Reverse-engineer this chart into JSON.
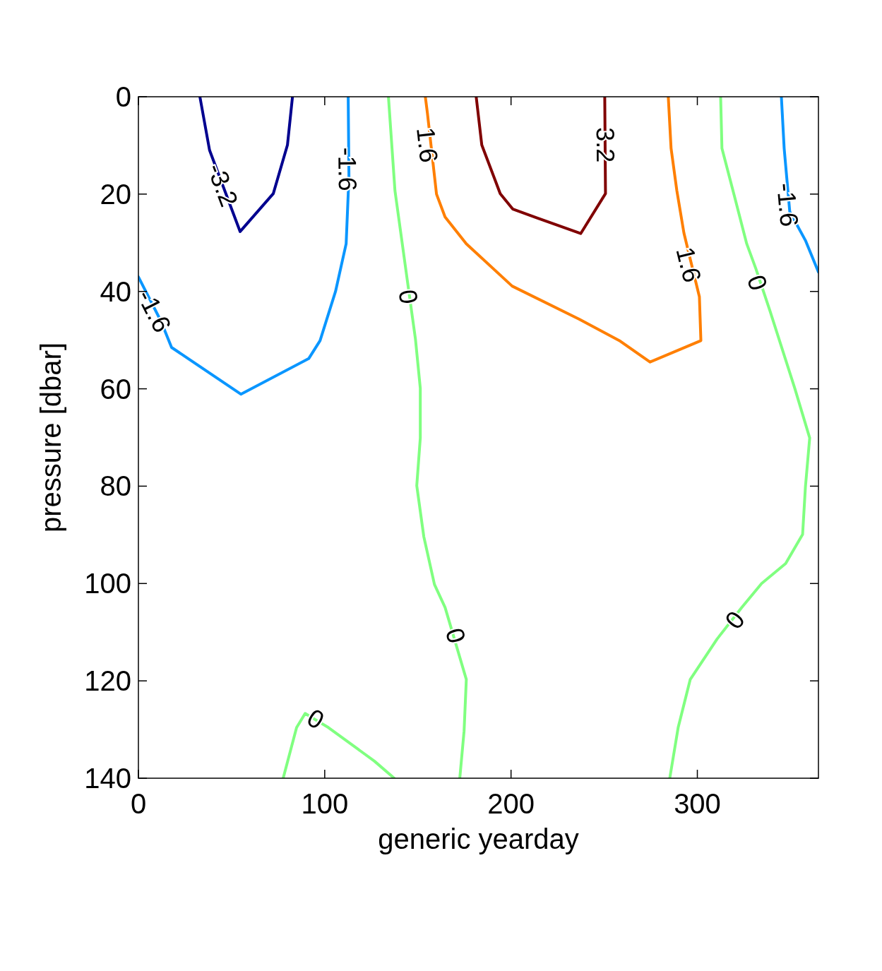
{
  "chart_data": {
    "type": "line",
    "xlabel": "generic yearday",
    "ylabel": "pressure [dbar]",
    "xlim": [
      0,
      365
    ],
    "ylim": [
      140,
      0
    ],
    "xticks": [
      0,
      100,
      200,
      300
    ],
    "yticks": [
      0,
      20,
      40,
      60,
      80,
      100,
      120,
      140
    ],
    "grid": false,
    "marker": "none",
    "line_style": "solid",
    "series": [
      {
        "color": "#00008f",
        "x": [
          33,
          38.2,
          54.6,
          72.4,
          80.0,
          82.7
        ],
        "values": [
          0,
          11,
          27.7,
          19.9,
          9.9,
          0
        ]
      },
      {
        "color": "#0a96ff",
        "x": [
          0,
          12.1,
          17.8,
          55.0,
          91.4,
          97.5,
          105.8,
          111.5,
          113.0,
          112.6
        ],
        "values": [
          37,
          46.1,
          51.5,
          61.1,
          53.8,
          50.1,
          40.0,
          30.2,
          16.4,
          0
        ]
      },
      {
        "color": "#0a96ff",
        "x": [
          345.1,
          346.6,
          349.6,
          358.0,
          365
        ],
        "values": [
          0,
          10.6,
          23.6,
          29.5,
          36.0
        ]
      },
      {
        "color": "#80ff80",
        "x": [
          134.2,
          137.7,
          144.5,
          148.7,
          151.3,
          151.3,
          149.4,
          153.2,
          158.9,
          164.6,
          176.0,
          174.8,
          172.5
        ],
        "values": [
          0,
          19.3,
          38.2,
          49.8,
          59.9,
          70.1,
          79.9,
          90.4,
          100.2,
          104.9,
          119.7,
          130.3,
          140
        ]
      },
      {
        "color": "#80ff80",
        "x": [
          77.7,
          84.9,
          89.5,
          102.0,
          126.7,
          137.3
        ],
        "values": [
          140,
          129.6,
          126.7,
          129.6,
          136.5,
          140
        ]
      },
      {
        "color": "#80ff80",
        "x": [
          312.5,
          313.2,
          320.1,
          326.5,
          331.4,
          339.0,
          352.3,
          360.3,
          358.0,
          356.5,
          347.4,
          334.5,
          323.9,
          310.6,
          296.2,
          289.7,
          285.2
        ],
        "values": [
          0,
          10.6,
          20.7,
          30.2,
          35.3,
          44.0,
          59.9,
          70.1,
          80.2,
          89.9,
          95.9,
          100.0,
          104.9,
          111.4,
          119.7,
          129.6,
          140
        ]
      },
      {
        "color": "#ff7f00",
        "x": [
          154.0,
          155.1,
          160.0,
          164.6,
          176.0,
          200.6,
          236.6,
          258.6,
          274.6,
          301.9,
          301.1,
          292.8,
          289.0,
          285.9,
          284.4
        ],
        "values": [
          0,
          3.3,
          20.0,
          24.7,
          30.2,
          38.9,
          45.7,
          50.2,
          54.5,
          50.1,
          41.1,
          28.0,
          19.3,
          10.6,
          0
        ]
      },
      {
        "color": "#800000",
        "x": [
          181.3,
          184.3,
          194.2,
          201.0,
          237.4,
          250.7,
          250.3
        ],
        "values": [
          0,
          9.9,
          19.9,
          23.1,
          28.1,
          19.9,
          0
        ]
      }
    ],
    "annotations": [
      {
        "text": "-3.2",
        "x": 45.2,
        "y": 18.1
      },
      {
        "text": "-1.6",
        "x": 8.5,
        "y": 44
      },
      {
        "text": "-1.6",
        "x": 112.2,
        "y": 14.9
      },
      {
        "text": "0",
        "x": 144.9,
        "y": 41.1
      },
      {
        "text": "1.6",
        "x": 155.1,
        "y": 9.9
      },
      {
        "text": "3.2",
        "x": 250.7,
        "y": 9.9
      },
      {
        "text": "1.6",
        "x": 295.4,
        "y": 34.5
      },
      {
        "text": "-1.6",
        "x": 348.5,
        "y": 22.2
      },
      {
        "text": "0",
        "x": 332.2,
        "y": 38.2
      },
      {
        "text": "0",
        "x": 170.3,
        "y": 110.7
      },
      {
        "text": "0",
        "x": 320.1,
        "y": 107.5
      },
      {
        "text": "0",
        "x": 95.2,
        "y": 127.8
      }
    ]
  }
}
